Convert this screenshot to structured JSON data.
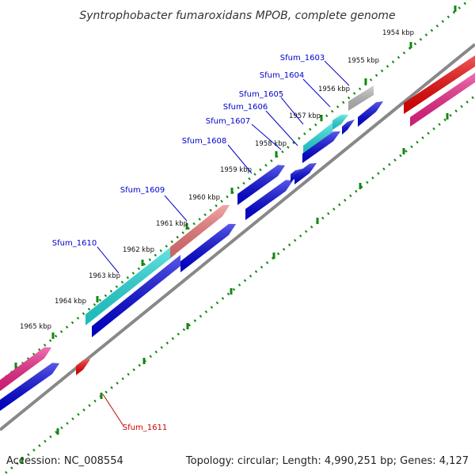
{
  "title": "Syntrophobacter fumaroxidans MPOB, complete genome",
  "footer": {
    "accession": "Accession: NC_008554",
    "summary": "Topology: circular; Length: 4,990,251 bp; Genes: 4,127"
  },
  "colors": {
    "backbone": "#888888",
    "tick": "#118811",
    "label_link": "#0000cc",
    "label_link_highlight": "#cc0000",
    "gene_blue": "#0000dd",
    "gene_cyan": "#22dddd",
    "gene_salmon": "#ee7777",
    "gene_gray": "#bbbbbb",
    "gene_red": "#ee0000",
    "gene_pink": "#ee2288"
  },
  "kbp_labels": [
    "1954 kbp",
    "1955 kbp",
    "1956 kbp",
    "1957 kbp",
    "1958 kbp",
    "1959 kbp",
    "1960 kbp",
    "1961 kbp",
    "1962 kbp",
    "1963 kbp",
    "1964 kbp",
    "1965 kbp"
  ],
  "gene_labels": [
    {
      "id": "Sfum_1603",
      "color": "#0000cc"
    },
    {
      "id": "Sfum_1604",
      "color": "#0000cc"
    },
    {
      "id": "Sfum_1605",
      "color": "#0000cc"
    },
    {
      "id": "Sfum_1606",
      "color": "#0000cc"
    },
    {
      "id": "Sfum_1607",
      "color": "#0000cc"
    },
    {
      "id": "Sfum_1608",
      "color": "#0000cc"
    },
    {
      "id": "Sfum_1609",
      "color": "#0000cc"
    },
    {
      "id": "Sfum_1610",
      "color": "#0000cc"
    },
    {
      "id": "Sfum_1611",
      "color": "#cc0000"
    }
  ]
}
